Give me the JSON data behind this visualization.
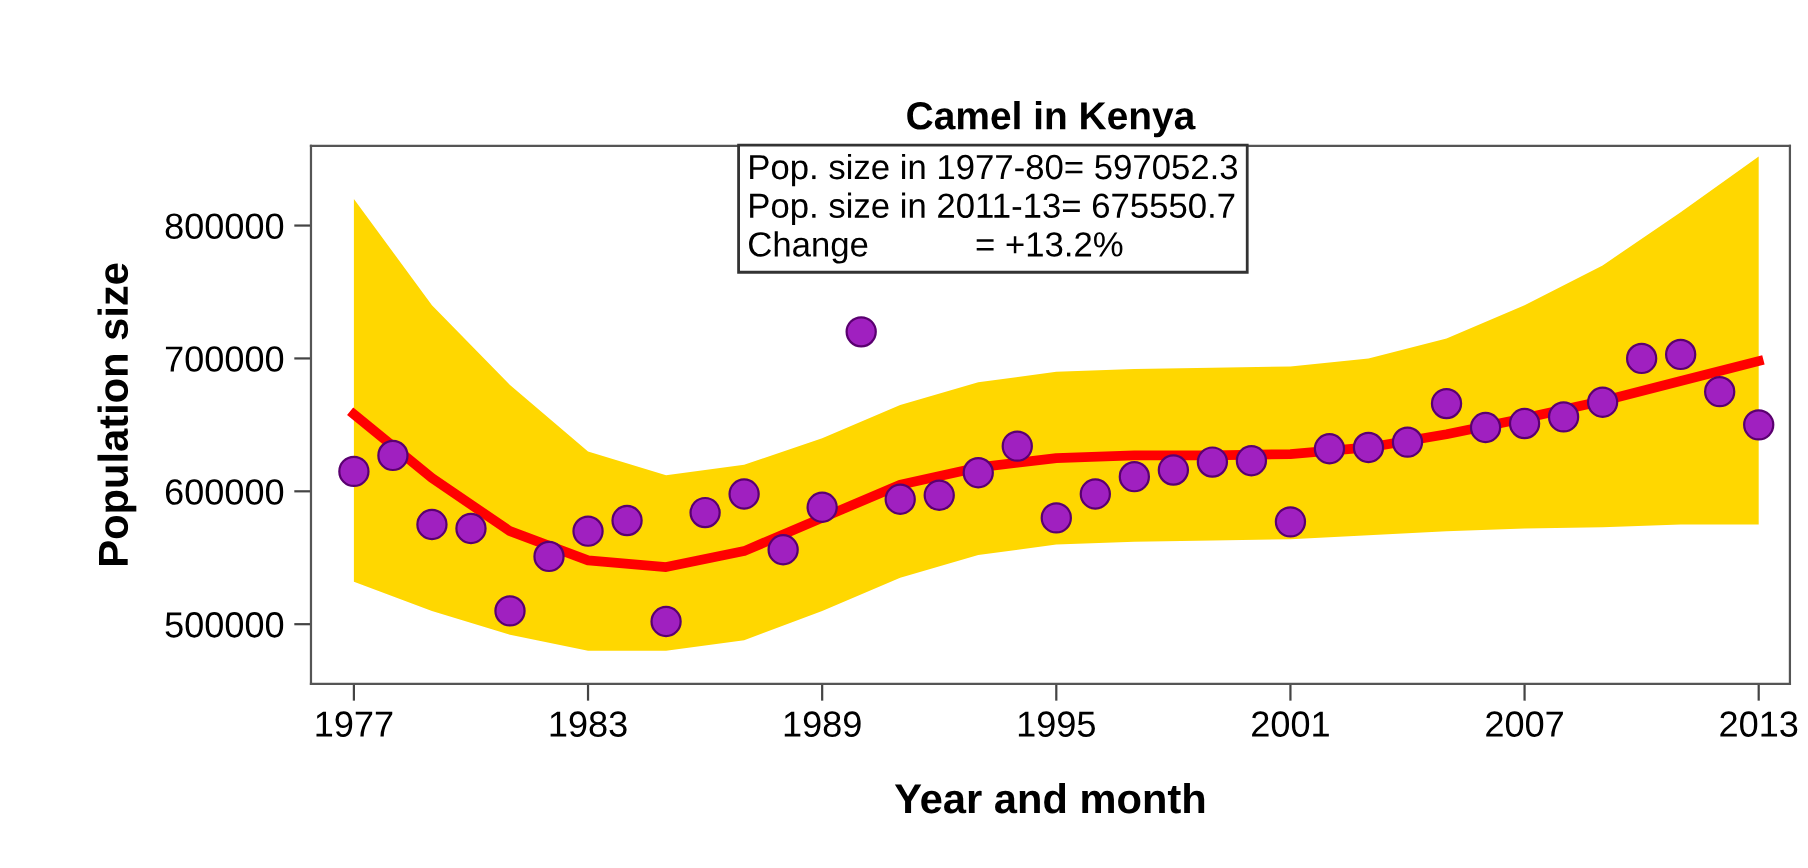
{
  "chart_data": {
    "type": "scatter",
    "title": "Camel in Kenya",
    "xlabel": "Year and month",
    "ylabel": "Population size",
    "annotations": [
      "Pop. size in 1977-80= 597052.3",
      "Pop. size in 2011-13= 675550.7",
      "Change           = +13.2%"
    ],
    "xlim": [
      1975.9,
      2013.8
    ],
    "xticks": [
      1977,
      1983,
      1989,
      1995,
      2001,
      2007,
      2013
    ],
    "ylim": [
      455000,
      860000
    ],
    "yticks": [
      500000,
      600000,
      700000,
      800000
    ],
    "grid": false,
    "legend": false,
    "series": [
      {
        "type": "line",
        "color": "#ff0000",
        "line_style": "solid",
        "marker": "none",
        "x": [
          1977,
          1979,
          1981,
          1983,
          1985,
          1987,
          1989,
          1991,
          1993,
          1995,
          1997,
          1999,
          2001,
          2003,
          2005,
          2007,
          2009,
          2011,
          2013
        ],
        "values": [
          658000,
          610000,
          570000,
          548000,
          543000,
          555000,
          580000,
          605000,
          618000,
          625000,
          627000,
          627000,
          628000,
          633000,
          643000,
          655000,
          668000,
          683000,
          698000
        ],
        "lower": [
          532000,
          510000,
          492000,
          480000,
          480000,
          488000,
          510000,
          535000,
          552000,
          560000,
          562000,
          563000,
          564000,
          567000,
          570000,
          572000,
          573000,
          575000,
          575000
        ],
        "upper": [
          820000,
          740000,
          680000,
          630000,
          612000,
          620000,
          640000,
          665000,
          682000,
          690000,
          692000,
          693000,
          694000,
          700000,
          715000,
          740000,
          770000,
          810000,
          852000
        ]
      },
      {
        "color": "#a020c0",
        "marker": "circle",
        "x": [
          1977,
          1978,
          1979,
          1980,
          1981,
          1982,
          1983,
          1984,
          1985,
          1986,
          1987,
          1988,
          1989,
          1990,
          1991,
          1992,
          1993,
          1994,
          1995,
          1996,
          1997,
          1998,
          1999,
          2000,
          2001,
          2002,
          2003,
          2004,
          2005,
          2006,
          2007,
          2008,
          2009,
          2010,
          2011,
          2012,
          2013
        ],
        "values": [
          615000,
          627000,
          575000,
          572000,
          510000,
          551000,
          570000,
          578000,
          502000,
          584000,
          598000,
          556000,
          588000,
          720000,
          594000,
          597000,
          614000,
          634000,
          580000,
          598000,
          611000,
          616000,
          622000,
          623000,
          577000,
          632000,
          633000,
          637000,
          666000,
          648000,
          651000,
          656000,
          667000,
          700000,
          703000,
          675000,
          650000
        ]
      }
    ]
  }
}
